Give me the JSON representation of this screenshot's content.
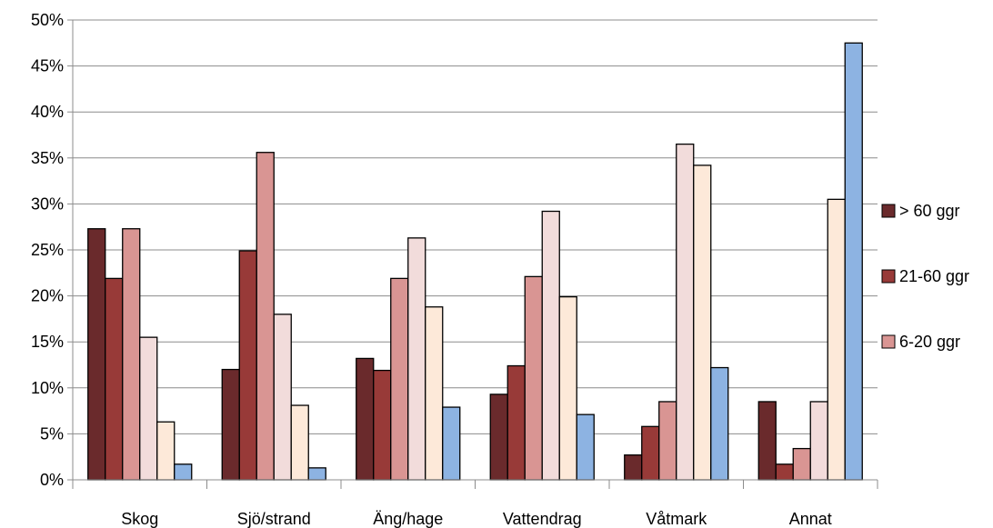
{
  "chart_data": {
    "type": "bar",
    "title": "",
    "xlabel": "",
    "ylabel": "",
    "categories": [
      "Skog",
      "Sjö/strand",
      "Äng/hage",
      "Vattendrag",
      "Våtmark",
      "Annat"
    ],
    "ylim": [
      0,
      0.5
    ],
    "yticks": [
      "0%",
      "5%",
      "10%",
      "15%",
      "20%",
      "25%",
      "30%",
      "35%",
      "40%",
      "45%",
      "50%"
    ],
    "grid": true,
    "legend_position": "right",
    "series": [
      {
        "name": "> 60 ggr",
        "color": "#6a2a2c",
        "values": [
          0.273,
          0.12,
          0.132,
          0.093,
          0.027,
          0.085
        ]
      },
      {
        "name": "21-60 ggr",
        "color": "#983a38",
        "values": [
          0.219,
          0.249,
          0.119,
          0.124,
          0.058,
          0.017
        ]
      },
      {
        "name": "6-20 ggr",
        "color": "#d99593",
        "values": [
          0.273,
          0.356,
          0.219,
          0.221,
          0.085,
          0.034
        ]
      },
      {
        "name": "",
        "color": "#f2dcdb",
        "values": [
          0.155,
          0.18,
          0.263,
          0.292,
          0.365,
          0.085
        ]
      },
      {
        "name": "",
        "color": "#fde9d9",
        "values": [
          0.063,
          0.081,
          0.188,
          0.199,
          0.342,
          0.305
        ]
      },
      {
        "name": "",
        "color": "#8db3e2",
        "values": [
          0.017,
          0.013,
          0.079,
          0.071,
          0.122,
          0.475
        ]
      }
    ]
  }
}
